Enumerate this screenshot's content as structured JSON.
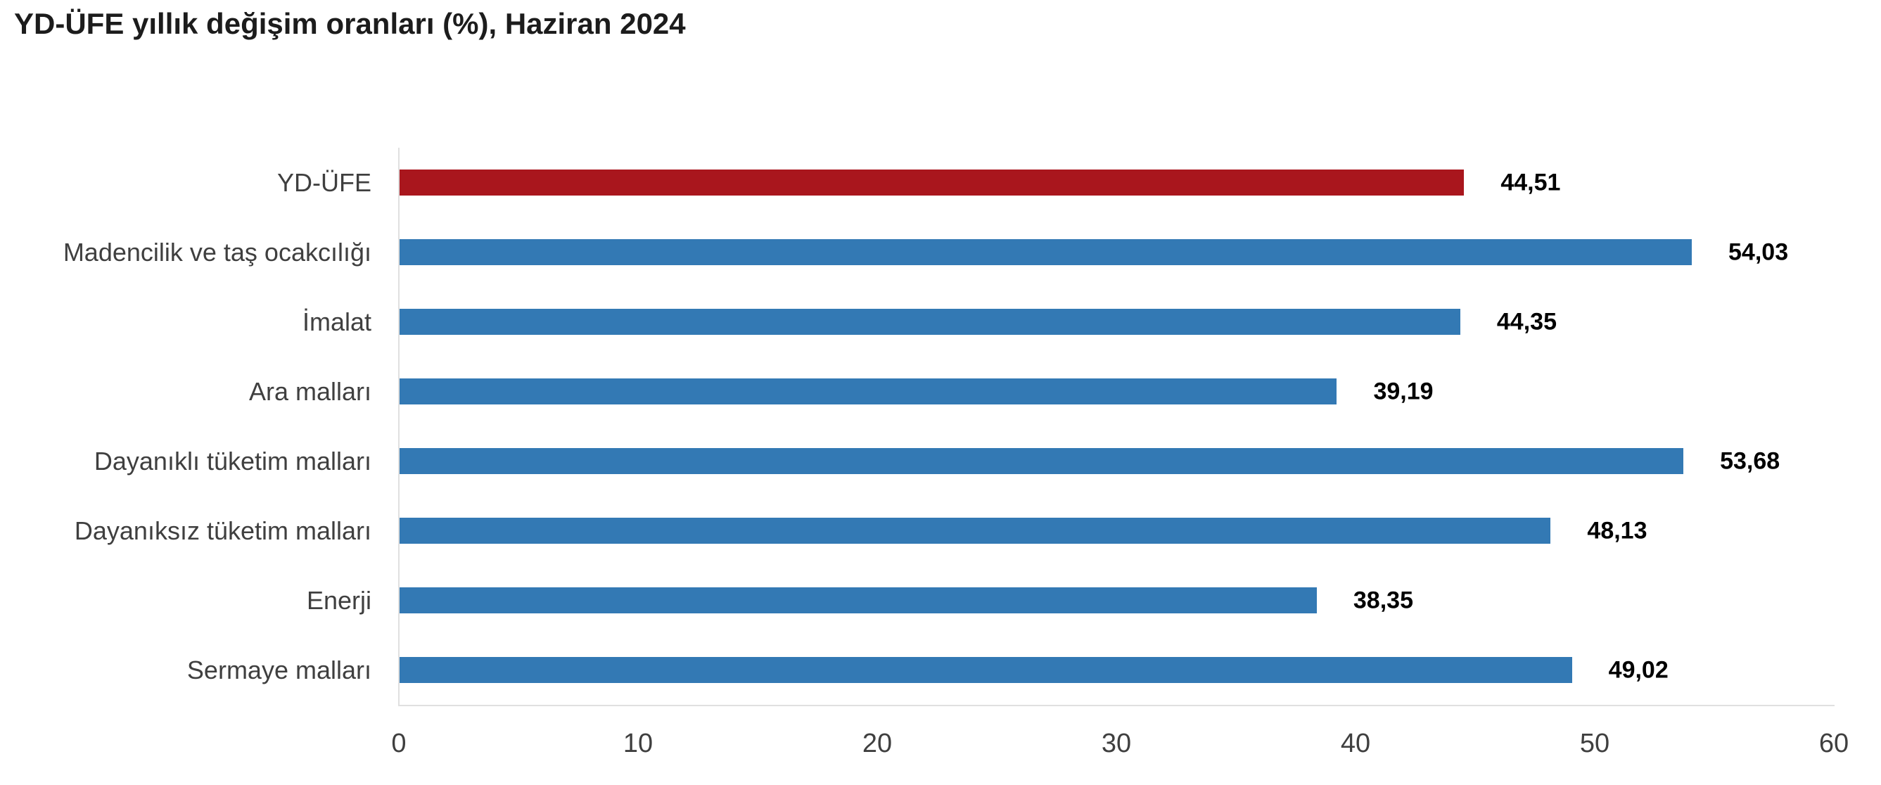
{
  "title": "YD-ÜFE yıllık değişim oranları (%), Haziran 2024",
  "colors": {
    "background": "#FFFFFF",
    "highlight_bar": "#A9161D",
    "bar": "#3379B4",
    "axis_line": "#E0E0E0",
    "title_text": "#1C1C1C",
    "label_text": "#3F3F3F",
    "value_text": "#000000",
    "tick_text": "#3F3F3F"
  },
  "chart_data": {
    "type": "bar",
    "orientation": "horizontal",
    "title": "YD-ÜFE yıllık değişim oranları (%), Haziran 2024",
    "categories": [
      "YD-ÜFE",
      "Madencilik ve taş ocakcılığı",
      "İmalat",
      "Ara malları",
      "Dayanıklı tüketim malları",
      "Dayanıksız tüketim malları",
      "Enerji",
      "Sermaye malları"
    ],
    "values": [
      44.51,
      54.03,
      44.35,
      39.19,
      53.68,
      48.13,
      38.35,
      49.02
    ],
    "value_labels": [
      "44,51",
      "54,03",
      "44,35",
      "39,19",
      "53,68",
      "48,13",
      "38,35",
      "49,02"
    ],
    "highlight_index": 0,
    "xlabel": "",
    "ylabel": "",
    "xlim": [
      0,
      60
    ],
    "x_ticks": [
      0,
      10,
      20,
      30,
      40,
      50,
      60
    ],
    "grid": false,
    "legend": "none",
    "value_label_position": "right-of-bar"
  }
}
